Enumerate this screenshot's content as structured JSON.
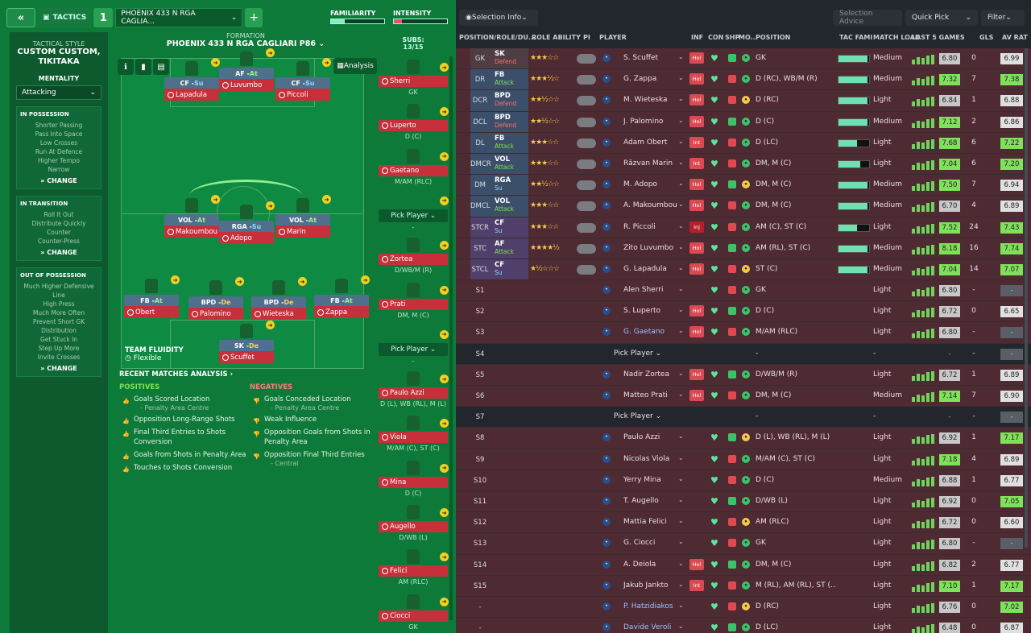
{
  "topbar": {
    "tactics": "TACTICS",
    "slot": "1",
    "name": "PHOENIX 433 N RGA CAGLIA...",
    "familiarity": "FAMILIARITY",
    "intensity": "INTENSITY",
    "familiarity_pct": 0.25,
    "intensity_pct": 0.15
  },
  "side": {
    "tactical_style": "TACTICAL STYLE",
    "style_name": "CUSTOM CUSTOM, TIKITAKA",
    "mentality": "MENTALITY",
    "mentality_val": "Attacking",
    "in_possession": {
      "title": "IN POSSESSION",
      "items": [
        "Shorter Passing",
        "Pass Into Space",
        "Low Crosses",
        "Run At Defence",
        "Higher Tempo",
        "Narrow"
      ]
    },
    "in_transition": {
      "title": "IN TRANSITION",
      "items": [
        "Roll It Out",
        "Distribute Quickly",
        "Counter",
        "Counter-Press"
      ]
    },
    "out_possession": {
      "title": "OUT OF POSSESSION",
      "items": [
        "Much Higher Defensive Line",
        "High Press",
        "Much More Often",
        "Prevent Short GK",
        "Distribution",
        "Get Stuck In",
        "Step Up More",
        "Invite Crosses"
      ]
    },
    "change": "CHANGE"
  },
  "formation": {
    "label": "FORMATION",
    "name": "PHOENIX 433 N RGA CAGLIARI P86",
    "analysis": "Analysis",
    "fluidity_label": "TEAM FLUIDITY",
    "fluidity": "Flexible"
  },
  "pitch_players": [
    {
      "role": "CF",
      "duty": "Su",
      "dc": "s",
      "name": "Lapadula"
    },
    {
      "role": "AF",
      "duty": "At",
      "dc": "a",
      "name": "Luvumbo"
    },
    {
      "role": "CF",
      "duty": "Su",
      "dc": "s",
      "name": "Piccoli"
    },
    {
      "role": "VOL",
      "duty": "At",
      "dc": "a",
      "name": "Makoumbou"
    },
    {
      "role": "RGA",
      "duty": "Su",
      "dc": "s",
      "name": "Adopo"
    },
    {
      "role": "VOL",
      "duty": "At",
      "dc": "a",
      "name": "Marin"
    },
    {
      "role": "FB",
      "duty": "At",
      "dc": "a",
      "name": "Obert"
    },
    {
      "role": "BPD",
      "duty": "De",
      "dc": "d",
      "name": "Palomino"
    },
    {
      "role": "BPD",
      "duty": "De",
      "dc": "d",
      "name": "Wieteska"
    },
    {
      "role": "FB",
      "duty": "At",
      "dc": "a",
      "name": "Zappa"
    },
    {
      "role": "SK",
      "duty": "De",
      "dc": "d",
      "name": "Scuffet"
    }
  ],
  "subs": {
    "title": "SUBS:",
    "count": "13/15",
    "list": [
      {
        "name": "Sherri",
        "pos": "GK"
      },
      {
        "name": "Luperto",
        "pos": "D (C)"
      },
      {
        "name": "Gaetano",
        "pos": "M/AM (RLC)"
      },
      {
        "pick": "Pick Player",
        "pos": "-"
      },
      {
        "name": "Zortea",
        "pos": "D/WB/M (R)"
      },
      {
        "name": "Prati",
        "pos": "DM, M (C)"
      },
      {
        "pick": "Pick Player",
        "pos": "-"
      },
      {
        "name": "Paulo Azzi",
        "pos": "D (L), WB (RL), M (L)"
      },
      {
        "name": "Viola",
        "pos": "M/AM (C), ST (C)"
      },
      {
        "name": "Mina",
        "pos": "D (C)"
      },
      {
        "name": "Augello",
        "pos": "D/WB (L)"
      },
      {
        "name": "Felici",
        "pos": "AM (RLC)"
      },
      {
        "name": "Ciocci",
        "pos": "GK"
      }
    ]
  },
  "analysis": {
    "title": "RECENT MATCHES ANALYSIS ›",
    "pos_title": "POSITIVES",
    "neg_title": "NEGATIVES",
    "positives": [
      {
        "t": "Goals Scored Location",
        "s": "- Penalty Area Centre"
      },
      {
        "t": "Opposition Long-Range Shots"
      },
      {
        "t": "Final Third Entries to Shots Conversion"
      },
      {
        "t": "Goals from Shots in Penalty Area"
      },
      {
        "t": "Touches to Shots Conversion"
      }
    ],
    "negatives": [
      {
        "t": "Goals Conceded Location",
        "s": "- Penalty Area Centre"
      },
      {
        "t": "Weak Influence"
      },
      {
        "t": "Opposition Goals from Shots in Penalty Area"
      },
      {
        "t": "Opposition Final Third Entries",
        "s": "- Central"
      }
    ]
  },
  "rtop": {
    "selection_info": "Selection Info",
    "selection_advice": "Selection Advice",
    "quick_pick": "Quick Pick",
    "filter": "Filter"
  },
  "columns": {
    "pos": "POSITION/ROLE/DU...",
    "ability": "ROLE ABILITY",
    "pi": "PI",
    "player": "PLAYER",
    "inf": "INF",
    "con": "CON",
    "shp": "SHP",
    "mo": "MO...",
    "position": "POSITION",
    "tac": "TAC FAMI",
    "load": "MATCH LOAD",
    "l5": "LAST 5 GAMES",
    "gls": "GLS",
    "avr": "AV RAT"
  },
  "rows": [
    {
      "pos": "GK",
      "role": "SK",
      "duty": "Defend",
      "stars": "★★★☆☆",
      "name": "S. Scuffet",
      "inf": "Hol",
      "ppos": "GK",
      "tac": 0.95,
      "load": "Medium",
      "avg": "6.80",
      "gls": "0",
      "avr": "6.99",
      "avrc": "#e0e0e0",
      "avgc": "#c8c8c8",
      "t": "red"
    },
    {
      "pos": "DR",
      "role": "FB",
      "duty": "Attack",
      "stars": "★★★½☆",
      "name": "G. Zappa",
      "inf": "Hol",
      "ppos": "D (RC), WB/M (R)",
      "tac": 0.95,
      "load": "Medium",
      "avg": "7.32",
      "gls": "7",
      "avr": "7.38",
      "avrc": "#7fe05a",
      "avgc": "#7fe05a",
      "t": "red"
    },
    {
      "pos": "DCR",
      "role": "BPD",
      "duty": "Defend",
      "stars": "★★½☆☆",
      "name": "M. Wieteska",
      "inf": "Hol",
      "ppos": "D (RC)",
      "tac": 0.95,
      "load": "Light",
      "avg": "6.84",
      "gls": "1",
      "avr": "6.88",
      "avrc": "#e0e0e0",
      "avgc": "#c8c8c8",
      "t": "red"
    },
    {
      "pos": "DCL",
      "role": "BPD",
      "duty": "Defend",
      "stars": "★★½☆☆",
      "name": "J. Palomino",
      "inf": "Hol",
      "ppos": "D (C)",
      "tac": 0.95,
      "load": "Medium",
      "avg": "7.12",
      "gls": "2",
      "avr": "6.86",
      "avrc": "#e0e0e0",
      "avgc": "#7fe05a",
      "t": "red"
    },
    {
      "pos": "DL",
      "role": "FB",
      "duty": "Attack",
      "stars": "★★★☆☆",
      "name": "Adam Obert",
      "inf": "Int",
      "ppos": "D (LC)",
      "tac": 0.6,
      "load": "Light",
      "avg": "7.68",
      "gls": "6",
      "avr": "7.22",
      "avrc": "#7fe05a",
      "avgc": "#7fe05a",
      "t": "red"
    },
    {
      "pos": "DMCR",
      "role": "VOL",
      "duty": "Attack",
      "stars": "★★★☆☆",
      "name": "Răzvan Marin",
      "inf": "Int",
      "ppos": "DM, M (C)",
      "tac": 0.7,
      "load": "Light",
      "avg": "7.04",
      "gls": "6",
      "avr": "7.20",
      "avrc": "#7fe05a",
      "avgc": "#7fe05a",
      "t": "red"
    },
    {
      "pos": "DM",
      "role": "RGA",
      "duty": "Su",
      "stars": "★★½☆☆",
      "name": "M. Adopo",
      "inf": "Hol",
      "ppos": "DM, M (C)",
      "tac": 0.95,
      "load": "Medium",
      "avg": "7.50",
      "gls": "7",
      "avr": "6.94",
      "avrc": "#e0e0e0",
      "avgc": "#7fe05a",
      "t": "red"
    },
    {
      "pos": "DMCL",
      "role": "VOL",
      "duty": "Attack",
      "stars": "★★★☆☆",
      "name": "A. Makoumbou",
      "inf": "Hol",
      "ppos": "DM, M (C)",
      "tac": 0.95,
      "load": "Medium",
      "avg": "6.70",
      "gls": "4",
      "avr": "6.89",
      "avrc": "#e0e0e0",
      "avgc": "#c8c8c8",
      "t": "red"
    },
    {
      "pos": "STCR",
      "role": "CF",
      "duty": "Su",
      "stars": "★★★☆☆",
      "name": "R. Piccoli",
      "inf": "Inj",
      "ppos": "AM (C), ST (C)",
      "tac": 0.6,
      "load": "Light",
      "avg": "7.52",
      "gls": "24",
      "avr": "7.43",
      "avrc": "#7fe05a",
      "avgc": "#7fe05a",
      "t": "red"
    },
    {
      "pos": "STC",
      "role": "AF",
      "duty": "Attack",
      "stars": "★★★★½",
      "name": "Zito Luvumbo",
      "inf": "Hol",
      "ppos": "AM (RL), ST (C)",
      "tac": 0.95,
      "load": "Medium",
      "avg": "8.18",
      "gls": "16",
      "avr": "7.74",
      "avrc": "#7fe05a",
      "avgc": "#7fe05a",
      "t": "red"
    },
    {
      "pos": "STCL",
      "role": "CF",
      "duty": "Su",
      "stars": "★½☆☆☆",
      "name": "G. Lapadula",
      "inf": "Hol",
      "ppos": "ST (C)",
      "tac": 0.95,
      "load": "Medium",
      "avg": "7.04",
      "gls": "14",
      "avr": "7.07",
      "avrc": "#7fe05a",
      "avgc": "#7fe05a",
      "t": "red"
    },
    {
      "pos": "S1",
      "name": "Alen Sherri",
      "ppos": "GK",
      "load": "Light",
      "avg": "6.80",
      "gls": "-",
      "avr": "-",
      "t": "red"
    },
    {
      "pos": "S2",
      "name": "S. Luperto",
      "inf": "Hol",
      "ppos": "D (C)",
      "load": "Light",
      "avg": "6.72",
      "gls": "0",
      "avr": "6.65",
      "avrc": "#e0e0e0",
      "t": "red"
    },
    {
      "pos": "S3",
      "name": "G. Gaetano",
      "inf": "Hol",
      "ppos": "M/AM (RLC)",
      "load": "Light",
      "avg": "6.80",
      "gls": "-",
      "avr": "-",
      "t": "red",
      "blue": true
    },
    {
      "pos": "S4",
      "pick": "Pick Player",
      "ppos": "-",
      "load": "-",
      "avg": "-",
      "gls": "-",
      "avr": "-",
      "t": "dark"
    },
    {
      "pos": "S5",
      "name": "Nadir Zortea",
      "inf": "Hol",
      "ppos": "D/WB/M (R)",
      "load": "Light",
      "avg": "6.72",
      "gls": "1",
      "avr": "6.89",
      "avrc": "#e0e0e0",
      "t": "red"
    },
    {
      "pos": "S6",
      "name": "Matteo Prati",
      "inf": "Hol",
      "ppos": "DM, M (C)",
      "load": "Medium",
      "avg": "7.14",
      "gls": "7",
      "avr": "6.90",
      "avrc": "#e0e0e0",
      "avgc": "#7fe05a",
      "t": "red"
    },
    {
      "pos": "S7",
      "pick": "Pick Player",
      "ppos": "-",
      "load": "-",
      "avg": "-",
      "gls": "-",
      "avr": "-",
      "t": "dark"
    },
    {
      "pos": "S8",
      "name": "Paulo Azzi",
      "ppos": "D (L), WB (RL), M (L)",
      "load": "Light",
      "avg": "6.92",
      "gls": "1",
      "avr": "7.17",
      "avrc": "#7fe05a",
      "t": "red"
    },
    {
      "pos": "S9",
      "name": "Nicolas Viola",
      "ppos": "M/AM (C), ST (C)",
      "load": "Light",
      "avg": "7.18",
      "gls": "4",
      "avr": "6.89",
      "avrc": "#e0e0e0",
      "avgc": "#7fe05a",
      "t": "red"
    },
    {
      "pos": "S10",
      "name": "Yerry Mina",
      "ppos": "D (C)",
      "load": "Medium",
      "avg": "6.88",
      "gls": "1",
      "avr": "6.77",
      "avrc": "#e0e0e0",
      "t": "red"
    },
    {
      "pos": "S11",
      "name": "T. Augello",
      "ppos": "D/WB (L)",
      "load": "Light",
      "avg": "6.92",
      "gls": "0",
      "avr": "7.05",
      "avrc": "#7fe05a",
      "t": "red"
    },
    {
      "pos": "S12",
      "name": "Mattia Felici",
      "ppos": "AM (RLC)",
      "load": "Light",
      "avg": "6.72",
      "gls": "0",
      "avr": "6.60",
      "avrc": "#e0e0e0",
      "t": "red"
    },
    {
      "pos": "S13",
      "name": "G. Ciocci",
      "ppos": "GK",
      "load": "Light",
      "avg": "6.80",
      "gls": "-",
      "avr": "-",
      "t": "red"
    },
    {
      "pos": "S14",
      "name": "A. Deiola",
      "inf": "Hol",
      "ppos": "DM, M (C)",
      "load": "Light",
      "avg": "6.82",
      "gls": "2",
      "avr": "6.77",
      "avrc": "#e0e0e0",
      "t": "red"
    },
    {
      "pos": "S15",
      "name": "Jakub Jankto",
      "inf": "Int",
      "ppos": "M (RL), AM (RL), ST (...",
      "load": "Light",
      "avg": "7.10",
      "gls": "1",
      "avr": "7.17",
      "avrc": "#7fe05a",
      "avgc": "#7fe05a",
      "t": "red"
    },
    {
      "pos": "-",
      "name": "P. Hatzidiakos",
      "ppos": "D (RC)",
      "load": "Light",
      "avg": "6.76",
      "gls": "0",
      "avr": "7.02",
      "avrc": "#7fe05a",
      "t": "red",
      "blue": true
    },
    {
      "pos": "-",
      "name": "Davide Veroli",
      "ppos": "D (LC)",
      "load": "Light",
      "avg": "6.48",
      "gls": "0",
      "avr": "6.87",
      "avrc": "#e0e0e0",
      "t": "red",
      "blue": true
    }
  ]
}
